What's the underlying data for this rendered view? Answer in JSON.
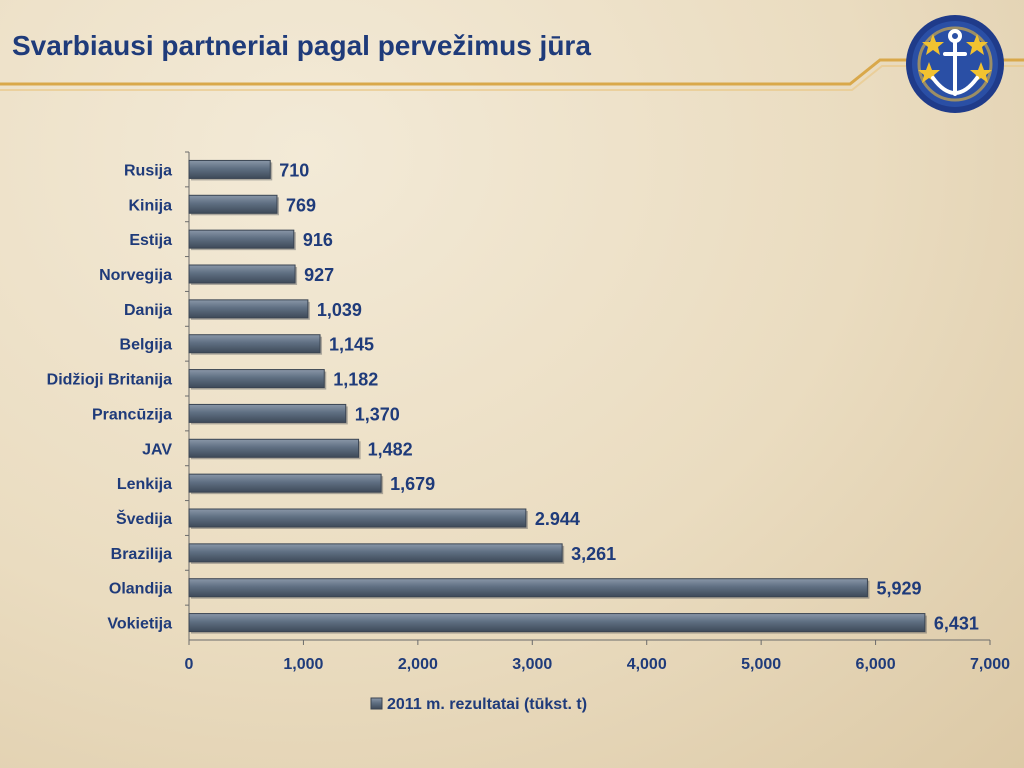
{
  "slide": {
    "title": "Svarbiausi partneriai pagal pervežimus jūra",
    "logo_icon": "anchor-stars-icon"
  },
  "colors": {
    "title": "#1f3b7a",
    "bar": "#5f6f82",
    "label": "#1f3b7a",
    "accent_line": "#d9a84a"
  },
  "chart_data": {
    "type": "bar",
    "orientation": "horizontal",
    "categories": [
      "Rusija",
      "Kinija",
      "Estija",
      "Norvegija",
      "Danija",
      "Belgija",
      "Didžioji Britanija",
      "Prancūzija",
      "JAV",
      "Lenkija",
      "Švedija",
      "Brazilija",
      "Olandija",
      "Vokietija"
    ],
    "values": [
      710,
      769,
      916,
      927,
      1039,
      1145,
      1182,
      1370,
      1482,
      1679,
      2944,
      3261,
      5929,
      6431
    ],
    "value_labels": [
      "710",
      "769",
      "916",
      "927",
      "1,039",
      "1,145",
      "1,182",
      "1,370",
      "1,482",
      "1,679",
      "2.944",
      "3,261",
      "5,929",
      "6,431"
    ],
    "series": [
      {
        "name": "2011 m. rezultatai (tūkst. t)",
        "values": [
          710,
          769,
          916,
          927,
          1039,
          1145,
          1182,
          1370,
          1482,
          1679,
          2944,
          3261,
          5929,
          6431
        ]
      }
    ],
    "xlim": [
      0,
      7000
    ],
    "x_ticks": [
      0,
      1000,
      2000,
      3000,
      4000,
      5000,
      6000,
      7000
    ],
    "x_tick_labels": [
      "0",
      "1,000",
      "2,000",
      "3,000",
      "4,000",
      "5,000",
      "6,000",
      "7,000"
    ],
    "legend": {
      "label": "2011 m. rezultatai (tūkst. t)",
      "placement": "bottom"
    },
    "grid": false
  }
}
